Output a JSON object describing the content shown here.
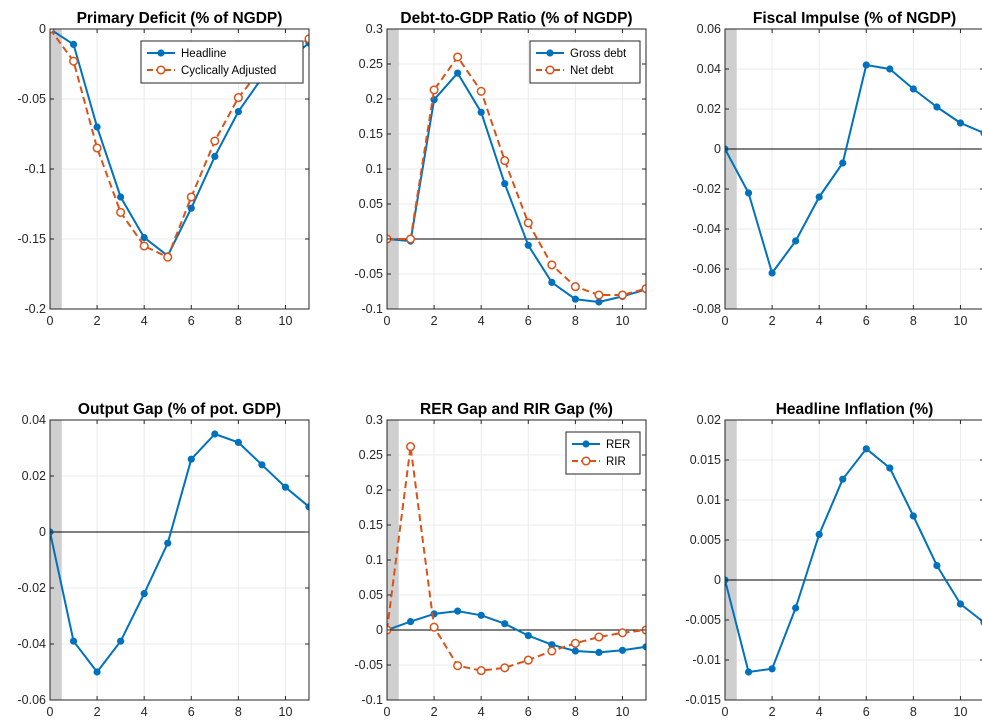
{
  "chart_data": [
    {
      "type": "line",
      "title": "Primary Deficit (% of NGDP)",
      "x": [
        0,
        1,
        2,
        3,
        4,
        5,
        6,
        7,
        8,
        9,
        10,
        11
      ],
      "xlim": [
        0,
        11
      ],
      "xticks": [
        "0",
        "2",
        "4",
        "6",
        "8",
        "10"
      ],
      "ylim": [
        -0.2,
        0
      ],
      "yticks": [
        "-0.2",
        "-0.15",
        "-0.1",
        "-0.05",
        "0"
      ],
      "shade_x": [
        0,
        0.5
      ],
      "legend": "top-right",
      "series": [
        {
          "name": "Headline",
          "style": "solid-dot",
          "color": "#0072BD",
          "values": [
            0,
            -0.011,
            -0.07,
            -0.12,
            -0.149,
            -0.162,
            -0.128,
            -0.091,
            -0.059,
            -0.035,
            -0.024,
            -0.01
          ]
        },
        {
          "name": "Cyclically Adjusted",
          "style": "dashed-circle",
          "color": "#D95319",
          "values": [
            0,
            -0.023,
            -0.085,
            -0.131,
            -0.155,
            -0.163,
            -0.12,
            -0.08,
            -0.049,
            -0.028,
            -0.017,
            -0.007
          ]
        }
      ]
    },
    {
      "type": "line",
      "title": "Debt-to-GDP Ratio (% of NGDP)",
      "x": [
        0,
        1,
        2,
        3,
        4,
        5,
        6,
        7,
        8,
        9,
        10,
        11
      ],
      "xlim": [
        0,
        11
      ],
      "xticks": [
        "0",
        "2",
        "4",
        "6",
        "8",
        "10"
      ],
      "ylim": [
        -0.1,
        0.3
      ],
      "yticks": [
        "-0.1",
        "-0.05",
        "0",
        "0.05",
        "0.1",
        "0.15",
        "0.2",
        "0.25",
        "0.3"
      ],
      "shade_x": [
        0,
        0.5
      ],
      "zero_line": true,
      "legend": "top-right",
      "series": [
        {
          "name": "Gross debt",
          "style": "solid-dot",
          "color": "#0072BD",
          "values": [
            0,
            -0.003,
            0.199,
            0.237,
            0.181,
            0.079,
            -0.009,
            -0.062,
            -0.086,
            -0.09,
            -0.082,
            -0.072
          ]
        },
        {
          "name": "Net debt",
          "style": "dashed-circle",
          "color": "#D95319",
          "values": [
            0,
            0.0,
            0.213,
            0.26,
            0.211,
            0.112,
            0.023,
            -0.037,
            -0.068,
            -0.08,
            -0.08,
            -0.071
          ]
        }
      ]
    },
    {
      "type": "line",
      "title": "Fiscal Impulse (% of NGDP)",
      "x": [
        0,
        1,
        2,
        3,
        4,
        5,
        6,
        7,
        8,
        9,
        10,
        11
      ],
      "xlim": [
        0,
        11
      ],
      "xticks": [
        "0",
        "2",
        "4",
        "6",
        "8",
        "10"
      ],
      "ylim": [
        -0.08,
        0.06
      ],
      "yticks": [
        "-0.08",
        "-0.06",
        "-0.04",
        "-0.02",
        "0",
        "0.02",
        "0.04",
        "0.06"
      ],
      "shade_x": [
        0,
        0.5
      ],
      "zero_line": true,
      "series": [
        {
          "style": "solid-dot",
          "color": "#0072BD",
          "values": [
            0,
            -0.022,
            -0.062,
            -0.046,
            -0.024,
            -0.007,
            0.042,
            0.04,
            0.03,
            0.021,
            0.013,
            0.008
          ]
        }
      ]
    },
    {
      "type": "line",
      "title": "Output Gap (% of pot. GDP)",
      "x": [
        0,
        1,
        2,
        3,
        4,
        5,
        6,
        7,
        8,
        9,
        10,
        11
      ],
      "xlim": [
        0,
        11
      ],
      "xticks": [
        "0",
        "2",
        "4",
        "6",
        "8",
        "10"
      ],
      "ylim": [
        -0.06,
        0.04
      ],
      "yticks": [
        "-0.06",
        "-0.04",
        "-0.02",
        "0",
        "0.02",
        "0.04"
      ],
      "shade_x": [
        0,
        0.5
      ],
      "zero_line": true,
      "series": [
        {
          "style": "solid-dot",
          "color": "#0072BD",
          "values": [
            0,
            -0.039,
            -0.05,
            -0.039,
            -0.022,
            -0.004,
            0.026,
            0.035,
            0.032,
            0.024,
            0.016,
            0.009
          ]
        }
      ]
    },
    {
      "type": "line",
      "title": "RER Gap and RIR Gap (%)",
      "x": [
        0,
        1,
        2,
        3,
        4,
        5,
        6,
        7,
        8,
        9,
        10,
        11
      ],
      "xlim": [
        0,
        11
      ],
      "xticks": [
        "0",
        "2",
        "4",
        "6",
        "8",
        "10"
      ],
      "ylim": [
        -0.1,
        0.3
      ],
      "yticks": [
        "-0.1",
        "-0.05",
        "0",
        "0.05",
        "0.1",
        "0.15",
        "0.2",
        "0.25",
        "0.3"
      ],
      "shade_x": [
        0,
        0.5
      ],
      "zero_line": true,
      "legend": "top-right",
      "series": [
        {
          "name": "RER",
          "style": "solid-dot",
          "color": "#0072BD",
          "values": [
            0,
            0.012,
            0.023,
            0.027,
            0.021,
            0.009,
            -0.008,
            -0.021,
            -0.03,
            -0.032,
            -0.029,
            -0.024
          ]
        },
        {
          "name": "RIR",
          "style": "dashed-circle",
          "color": "#D95319",
          "values": [
            0,
            0.262,
            0.004,
            -0.051,
            -0.058,
            -0.054,
            -0.043,
            -0.03,
            -0.019,
            -0.01,
            -0.004,
            0.0
          ]
        }
      ]
    },
    {
      "type": "line",
      "title": "Headline Inflation (%)",
      "x": [
        0,
        1,
        2,
        3,
        4,
        5,
        6,
        7,
        8,
        9,
        10,
        11
      ],
      "xlim": [
        0,
        11
      ],
      "xticks": [
        "0",
        "2",
        "4",
        "6",
        "8",
        "10"
      ],
      "ylim": [
        -0.015,
        0.02
      ],
      "yticks": [
        "-0.015",
        "-0.01",
        "-0.005",
        "0",
        "0.005",
        "0.01",
        "0.015",
        "0.02"
      ],
      "shade_x": [
        0,
        0.5
      ],
      "zero_line": true,
      "series": [
        {
          "style": "solid-dot",
          "color": "#0072BD",
          "values": [
            0,
            -0.0115,
            -0.0111,
            -0.0035,
            0.0057,
            0.0126,
            0.0164,
            0.014,
            0.008,
            0.0018,
            -0.003,
            -0.0053
          ]
        }
      ]
    }
  ]
}
